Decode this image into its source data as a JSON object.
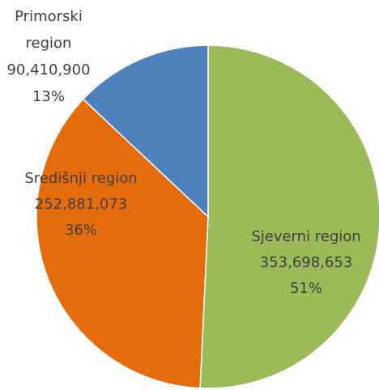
{
  "chart_data": {
    "type": "pie",
    "categories": [
      "Sjeverni region",
      "Središnji region",
      "Primorski region"
    ],
    "values": [
      353698653,
      252881073,
      90410900
    ],
    "value_labels": [
      "353,698,653",
      "252,881,073",
      "90,410,900"
    ],
    "percent_labels": [
      "51%",
      "36%",
      "13%"
    ],
    "colors": [
      "#9bbb59",
      "#e46c0a",
      "#4f81bd"
    ]
  }
}
